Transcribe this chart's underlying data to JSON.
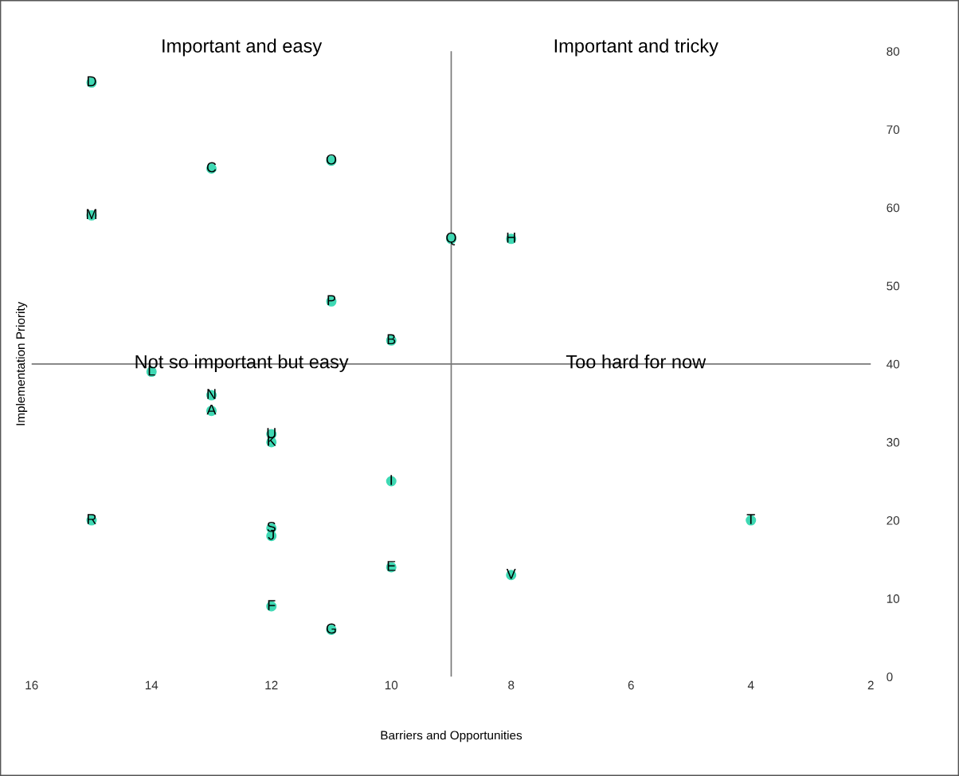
{
  "chart_data": {
    "type": "scatter",
    "xlabel": "Barriers and Opportunities",
    "ylabel": "Implementation Priority",
    "x": [
      13,
      10,
      13,
      15,
      10,
      12,
      11,
      8,
      10,
      12,
      12,
      14,
      15,
      13,
      11,
      11,
      9,
      15,
      12,
      4,
      12,
      8
    ],
    "series": [
      {
        "color": "#3fd9b4",
        "values": [
          34,
          43,
          65,
          76,
          14,
          9,
          6,
          56,
          25,
          18,
          30,
          39,
          59,
          36,
          66,
          48,
          56,
          20,
          19,
          20,
          31,
          13
        ]
      }
    ],
    "annotations": [
      "Important and easy",
      "Important and tricky",
      "Not so important but easy",
      "Too hard for now",
      {
        "text": "A",
        "x": 13,
        "y": 34
      },
      {
        "text": "B",
        "x": 10,
        "y": 43
      },
      {
        "text": "C",
        "x": 13,
        "y": 65
      },
      {
        "text": "D",
        "x": 15,
        "y": 76
      },
      {
        "text": "E",
        "x": 10,
        "y": 14
      },
      {
        "text": "F",
        "x": 12,
        "y": 9
      },
      {
        "text": "G",
        "x": 11,
        "y": 6
      },
      {
        "text": "H",
        "x": 8,
        "y": 56
      },
      {
        "text": "I",
        "x": 10,
        "y": 25
      },
      {
        "text": "J",
        "x": 12,
        "y": 18
      },
      {
        "text": "K",
        "x": 12,
        "y": 30
      },
      {
        "text": "L",
        "x": 14,
        "y": 39
      },
      {
        "text": "M",
        "x": 15,
        "y": 59
      },
      {
        "text": "N",
        "x": 13,
        "y": 36
      },
      {
        "text": "O",
        "x": 11,
        "y": 66
      },
      {
        "text": "P",
        "x": 11,
        "y": 48
      },
      {
        "text": "Q",
        "x": 9,
        "y": 56
      },
      {
        "text": "R",
        "x": 15,
        "y": 20
      },
      {
        "text": "S",
        "x": 12,
        "y": 19
      },
      {
        "text": "T",
        "x": 4,
        "y": 20
      },
      {
        "text": "U",
        "x": 12,
        "y": 31
      },
      {
        "text": "V",
        "x": 8,
        "y": 13
      }
    ],
    "ref_lines": [
      {
        "axis": "x",
        "value": 9,
        "color": "#777777"
      },
      {
        "axis": "y",
        "value": 40,
        "color": "#777777"
      }
    ],
    "xlim": [
      16,
      2
    ],
    "ylim": [
      0,
      80
    ],
    "xticks": [
      16,
      14,
      12,
      10,
      8,
      6,
      4,
      2
    ],
    "yticks": [
      0,
      10,
      20,
      30,
      40,
      50,
      60,
      70,
      80
    ],
    "marker": "circle"
  }
}
